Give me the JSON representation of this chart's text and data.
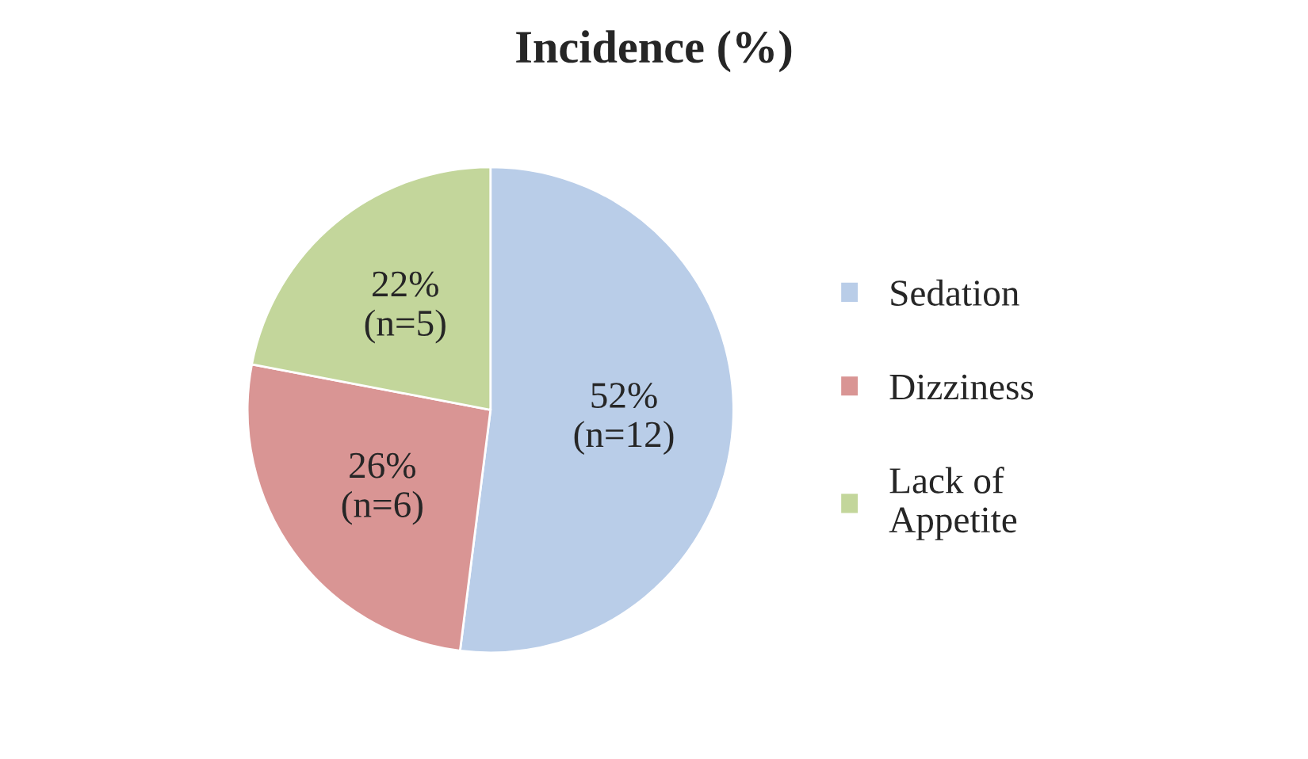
{
  "chart_data": {
    "type": "pie",
    "title": "Incidence (%)",
    "categories": [
      "Sedation",
      "Dizziness",
      "Lack of\nAppetite"
    ],
    "values": [
      52,
      26,
      22
    ],
    "colors": [
      "#b9cde8",
      "#d99594",
      "#c3d69b"
    ],
    "value_labels": [
      "52%\n(n=12)",
      "26%\n(n=6)",
      "22%\n(n=5)"
    ],
    "legend": "right"
  }
}
